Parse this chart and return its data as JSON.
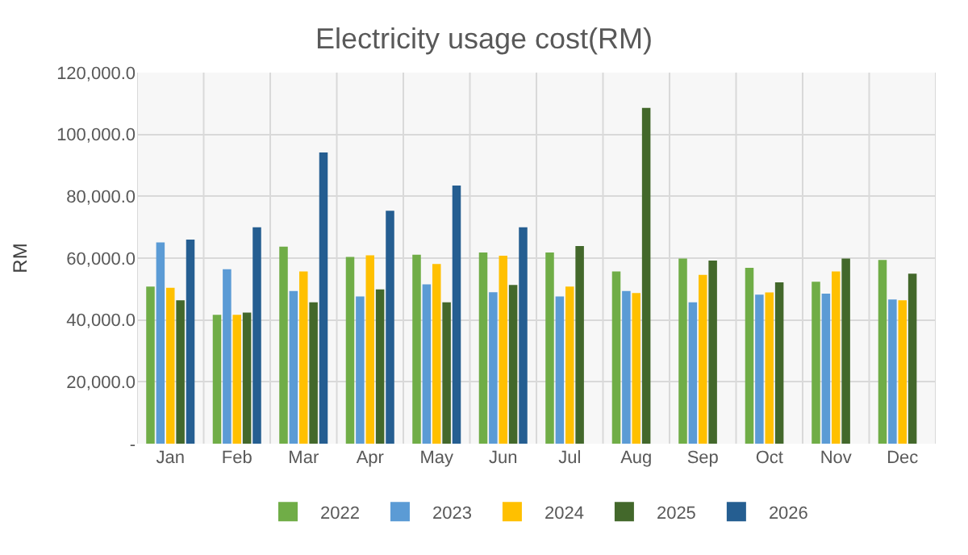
{
  "chart_data": {
    "type": "bar",
    "title": "Electricity usage cost(RM)",
    "ylabel": "RM",
    "categories": [
      "Jan",
      "Feb",
      "Mar",
      "Apr",
      "May",
      "Jun",
      "Jul",
      "Aug",
      "Sep",
      "Oct",
      "Nov",
      "Dec"
    ],
    "series": [
      {
        "name": "2022",
        "color": "#70ad47",
        "values": [
          50800,
          41700,
          63700,
          60400,
          61100,
          61800,
          61800,
          55700,
          59900,
          56900,
          52400,
          59400
        ]
      },
      {
        "name": "2023",
        "color": "#5b9bd5",
        "values": [
          65100,
          56400,
          49400,
          47600,
          51500,
          49000,
          47600,
          49400,
          45700,
          48200,
          48500,
          46600
        ]
      },
      {
        "name": "2024",
        "color": "#ffc000",
        "values": [
          50400,
          41700,
          55700,
          60900,
          58100,
          60800,
          50800,
          48700,
          54600,
          48900,
          55700,
          46400
        ]
      },
      {
        "name": "2025",
        "color": "#43682b",
        "values": [
          46400,
          42400,
          45700,
          49900,
          45700,
          51300,
          63900,
          108600,
          59200,
          52200,
          59900,
          55000
        ]
      },
      {
        "name": "2026",
        "color": "#255e91",
        "values": [
          66000,
          70000,
          94200,
          75300,
          83500,
          70000,
          null,
          null,
          null,
          null,
          null,
          null
        ]
      }
    ],
    "ylim": [
      0,
      120000
    ],
    "yticks": [
      {
        "value": 0,
        "label": "-"
      },
      {
        "value": 20000,
        "label": "20,000.0"
      },
      {
        "value": 40000,
        "label": "40,000.0"
      },
      {
        "value": 60000,
        "label": "60,000.0"
      },
      {
        "value": 80000,
        "label": "80,000.0"
      },
      {
        "value": 100000,
        "label": "100,000.0"
      },
      {
        "value": 120000,
        "label": "120,000.0"
      }
    ],
    "grid": true,
    "legend": "bottom"
  }
}
